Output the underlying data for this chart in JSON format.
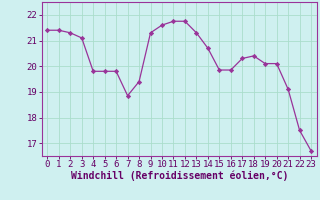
{
  "x": [
    0,
    1,
    2,
    3,
    4,
    5,
    6,
    7,
    8,
    9,
    10,
    11,
    12,
    13,
    14,
    15,
    16,
    17,
    18,
    19,
    20,
    21,
    22,
    23
  ],
  "y": [
    21.4,
    21.4,
    21.3,
    21.1,
    19.8,
    19.8,
    19.8,
    18.85,
    19.4,
    21.3,
    21.6,
    21.75,
    21.75,
    21.3,
    20.7,
    19.85,
    19.85,
    20.3,
    20.4,
    20.1,
    20.1,
    19.1,
    17.5,
    16.7
  ],
  "line_color": "#993399",
  "marker": "D",
  "marker_size": 2.2,
  "bg_color": "#cff0f0",
  "grid_color": "#aaddcc",
  "xlabel": "Windchill (Refroidissement éolien,°C)",
  "xlim": [
    -0.5,
    23.5
  ],
  "ylim": [
    16.5,
    22.5
  ],
  "yticks": [
    17,
    18,
    19,
    20,
    21,
    22
  ],
  "xticks": [
    0,
    1,
    2,
    3,
    4,
    5,
    6,
    7,
    8,
    9,
    10,
    11,
    12,
    13,
    14,
    15,
    16,
    17,
    18,
    19,
    20,
    21,
    22,
    23
  ],
  "tick_color": "#660066",
  "label_color": "#660066",
  "spine_color": "#993399",
  "tick_fontsize": 6.5,
  "xlabel_fontsize": 7.0
}
